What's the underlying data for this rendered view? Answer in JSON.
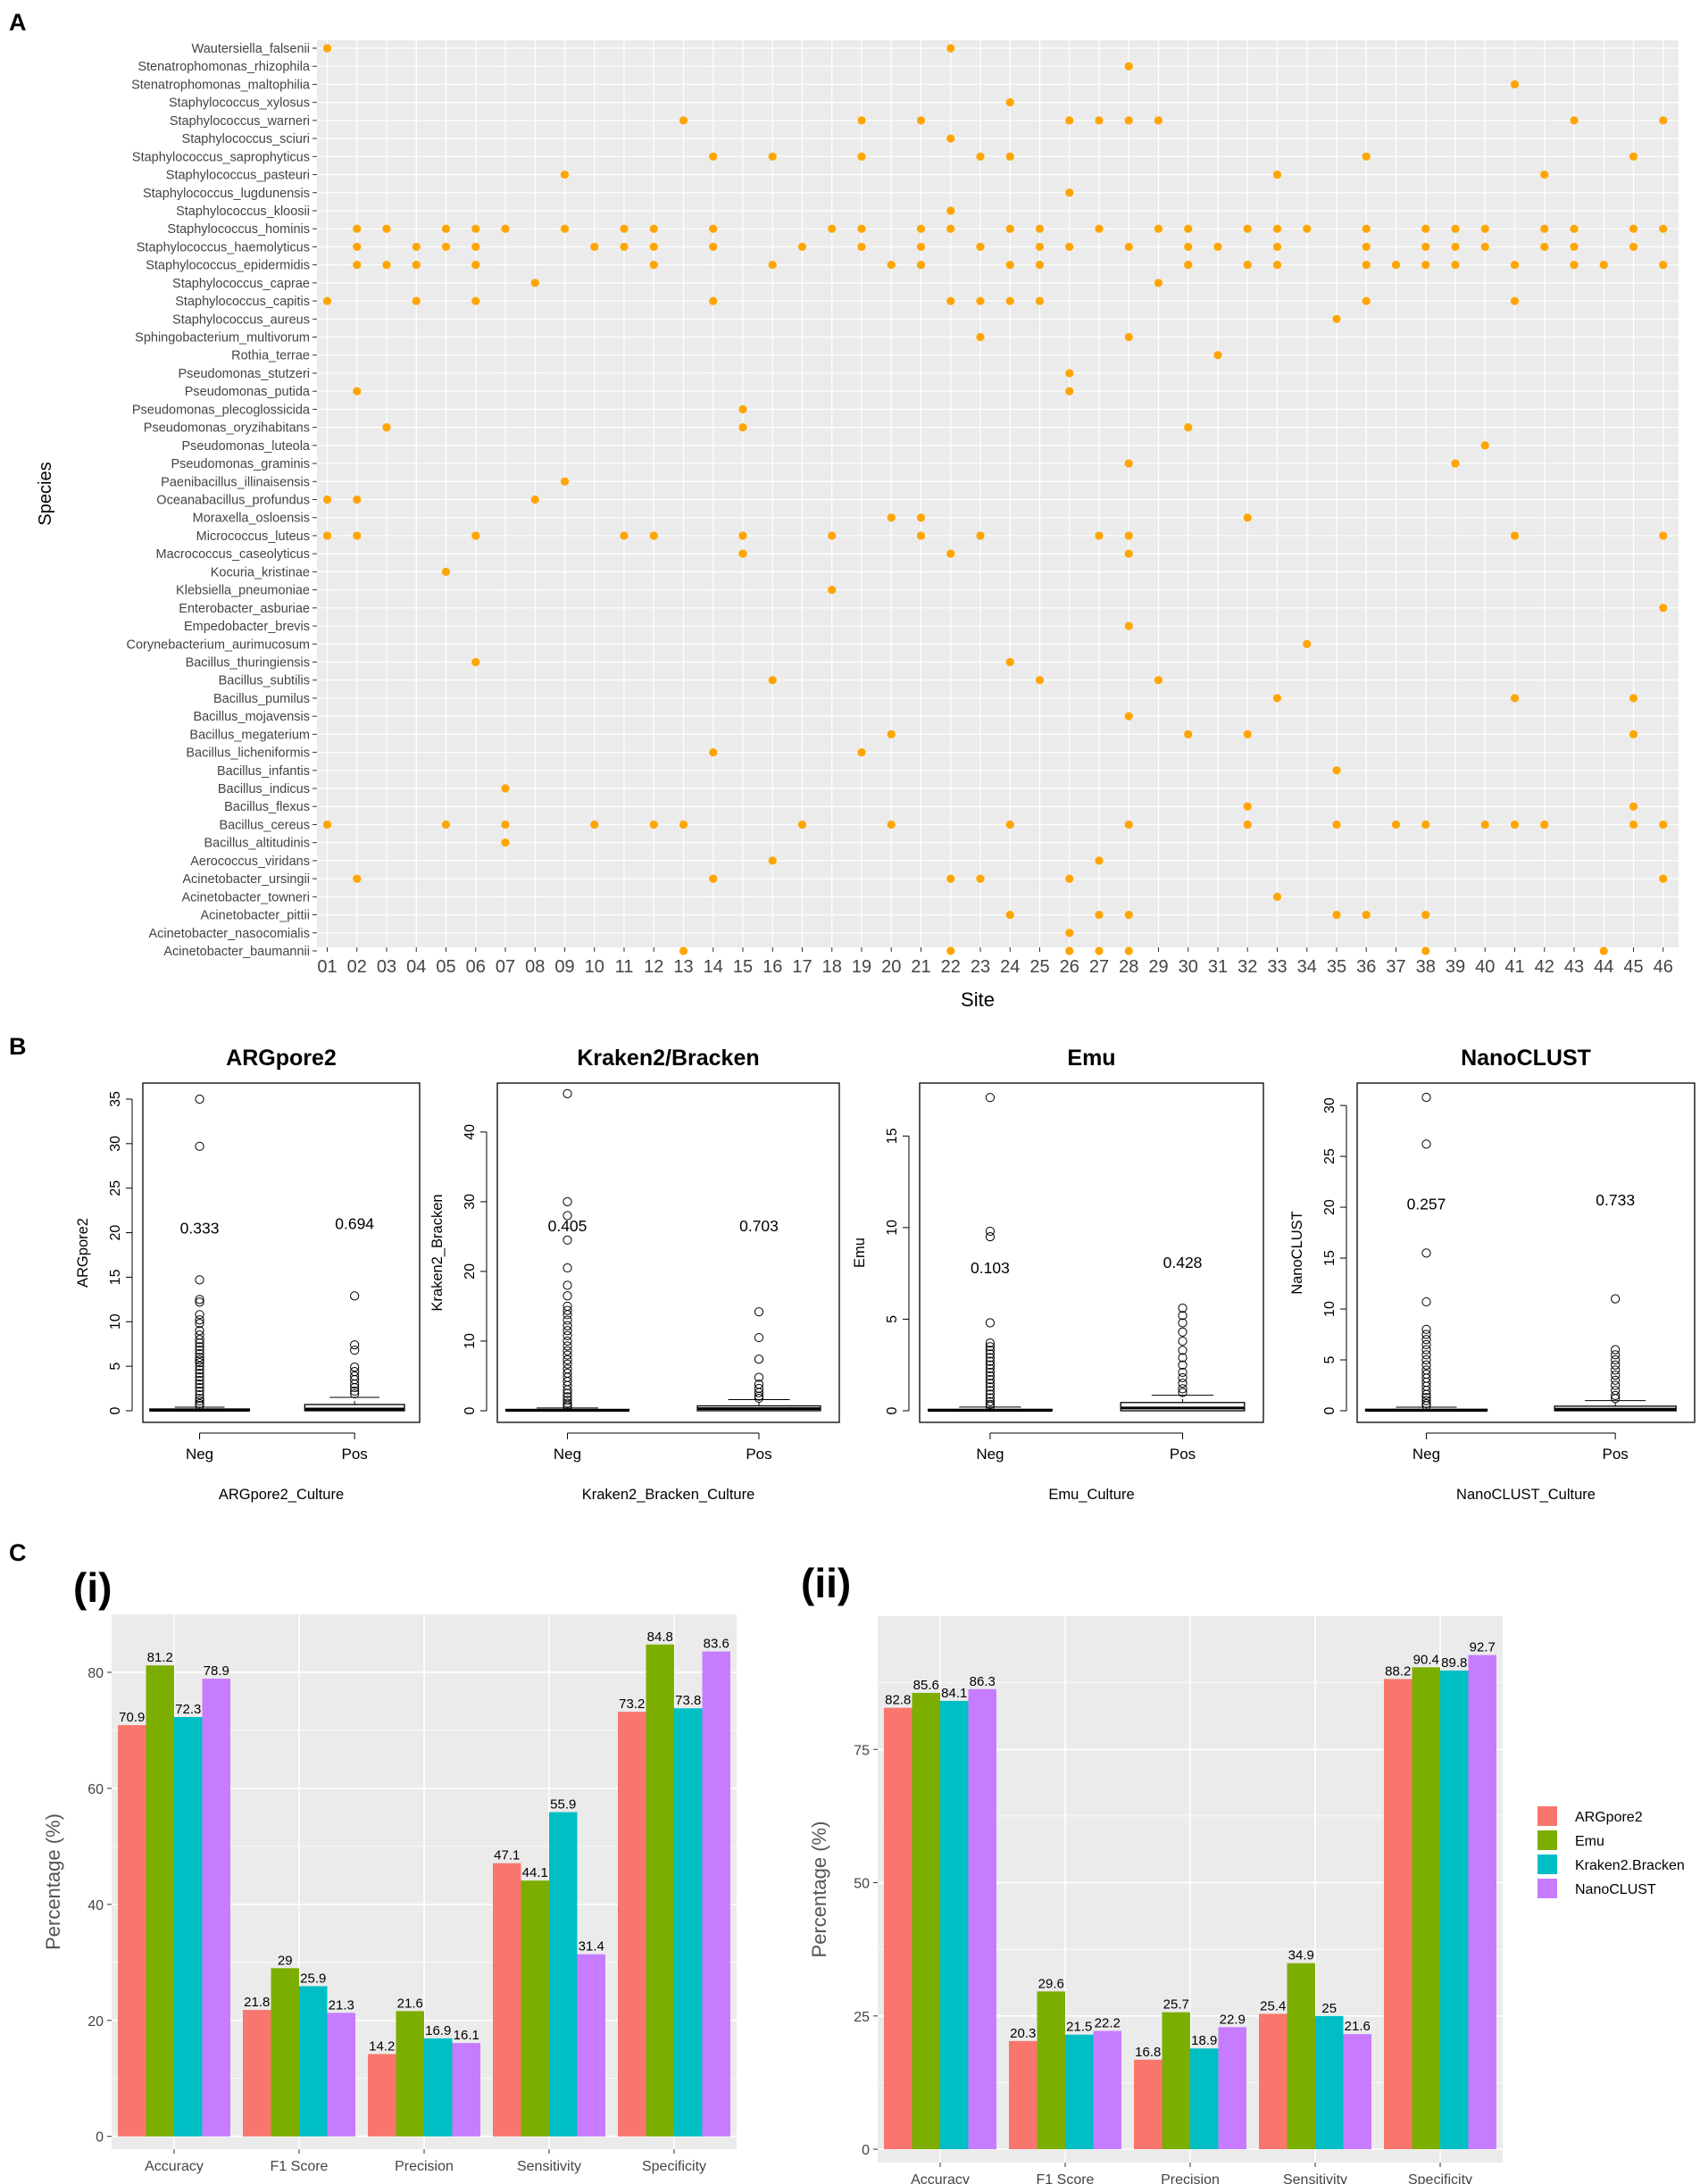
{
  "panel_labels": {
    "a": "A",
    "b": "B",
    "c": "C"
  },
  "colors": {
    "dot": "#ffa500",
    "panel_bg": "#ebebeb",
    "grid": "#ffffff",
    "argpore2": "#f8766d",
    "emu": "#7cae00",
    "kraken": "#00bfc4",
    "nanoclust": "#c77cff"
  },
  "chart_data": [
    {
      "type": "scatter",
      "title": "",
      "xlabel": "Site",
      "ylabel": "Species",
      "sites": [
        "01",
        "02",
        "03",
        "04",
        "05",
        "06",
        "07",
        "08",
        "09",
        "10",
        "11",
        "12",
        "13",
        "14",
        "15",
        "16",
        "17",
        "18",
        "19",
        "20",
        "21",
        "22",
        "23",
        "24",
        "25",
        "26",
        "27",
        "28",
        "29",
        "30",
        "31",
        "32",
        "33",
        "34",
        "35",
        "36",
        "37",
        "38",
        "39",
        "40",
        "41",
        "42",
        "43",
        "44",
        "45",
        "46"
      ],
      "species": [
        "Wautersiella_falsenii",
        "Stenatrophomonas_rhizophila",
        "Stenatrophomonas_maltophilia",
        "Staphylococcus_xylosus",
        "Staphylococcus_warneri",
        "Staphylococcus_sciuri",
        "Staphylococcus_saprophyticus",
        "Staphylococcus_pasteuri",
        "Staphylococcus_lugdunensis",
        "Staphylococcus_kloosii",
        "Staphylococcus_hominis",
        "Staphylococcus_haemolyticus",
        "Staphylococcus_epidermidis",
        "Staphylococcus_caprae",
        "Staphylococcus_capitis",
        "Staphylococcus_aureus",
        "Sphingobacterium_multivorum",
        "Rothia_terrae",
        "Pseudomonas_stutzeri",
        "Pseudomonas_putida",
        "Pseudomonas_plecoglossicida",
        "Pseudomonas_oryzihabitans",
        "Pseudomonas_luteola",
        "Pseudomonas_graminis",
        "Paenibacillus_illinaisensis",
        "Oceanabacillus_profundus",
        "Moraxella_osloensis",
        "Micrococcus_luteus",
        "Macrococcus_caseolyticus",
        "Kocuria_kristinae",
        "Klebsiella_pneumoniae",
        "Enterobacter_asburiae",
        "Empedobacter_brevis",
        "Corynebacterium_aurimucosum",
        "Bacillus_thuringiensis",
        "Bacillus_subtilis",
        "Bacillus_pumilus",
        "Bacillus_mojavensis",
        "Bacillus_megaterium",
        "Bacillus_licheniformis",
        "Bacillus_infantis",
        "Bacillus_indicus",
        "Bacillus_flexus",
        "Bacillus_cereus",
        "Bacillus_altitudinis",
        "Aerococcus_viridans",
        "Acinetobacter_ursingii",
        "Acinetobacter_towneri",
        "Acinetobacter_pittii",
        "Acinetobacter_nasocomialis",
        "Acinetobacter_baumannii"
      ],
      "presence": {
        "Wautersiella_falsenii": [
          "01",
          "22"
        ],
        "Stenatrophomonas_rhizophila": [
          "28"
        ],
        "Stenatrophomonas_maltophilia": [
          "41"
        ],
        "Staphylococcus_xylosus": [
          "24"
        ],
        "Staphylococcus_warneri": [
          "13",
          "19",
          "21",
          "26",
          "27",
          "28",
          "29",
          "43",
          "46"
        ],
        "Staphylococcus_sciuri": [
          "22"
        ],
        "Staphylococcus_saprophyticus": [
          "14",
          "16",
          "19",
          "23",
          "24",
          "36",
          "45"
        ],
        "Staphylococcus_pasteuri": [
          "09",
          "33",
          "42"
        ],
        "Staphylococcus_lugdunensis": [
          "26"
        ],
        "Staphylococcus_kloosii": [
          "22"
        ],
        "Staphylococcus_hominis": [
          "02",
          "03",
          "05",
          "06",
          "07",
          "09",
          "11",
          "12",
          "14",
          "18",
          "19",
          "21",
          "22",
          "24",
          "25",
          "27",
          "29",
          "30",
          "32",
          "33",
          "34",
          "36",
          "38",
          "39",
          "40",
          "42",
          "43",
          "45",
          "46"
        ],
        "Staphylococcus_haemolyticus": [
          "02",
          "04",
          "05",
          "06",
          "10",
          "11",
          "12",
          "14",
          "17",
          "19",
          "21",
          "23",
          "25",
          "26",
          "28",
          "30",
          "31",
          "33",
          "36",
          "38",
          "39",
          "40",
          "42",
          "43",
          "45"
        ],
        "Staphylococcus_epidermidis": [
          "02",
          "03",
          "04",
          "06",
          "12",
          "16",
          "20",
          "21",
          "24",
          "25",
          "30",
          "32",
          "33",
          "36",
          "37",
          "38",
          "39",
          "41",
          "43",
          "44",
          "46"
        ],
        "Staphylococcus_caprae": [
          "08",
          "29"
        ],
        "Staphylococcus_capitis": [
          "01",
          "04",
          "06",
          "14",
          "22",
          "23",
          "24",
          "25",
          "36",
          "41"
        ],
        "Staphylococcus_aureus": [
          "35"
        ],
        "Sphingobacterium_multivorum": [
          "23",
          "28"
        ],
        "Rothia_terrae": [
          "31"
        ],
        "Pseudomonas_stutzeri": [
          "26"
        ],
        "Pseudomonas_putida": [
          "02",
          "26"
        ],
        "Pseudomonas_plecoglossicida": [
          "15"
        ],
        "Pseudomonas_oryzihabitans": [
          "03",
          "15",
          "30"
        ],
        "Pseudomonas_luteola": [
          "40"
        ],
        "Pseudomonas_graminis": [
          "28",
          "39"
        ],
        "Paenibacillus_illinaisensis": [
          "09"
        ],
        "Oceanabacillus_profundus": [
          "01",
          "02",
          "08"
        ],
        "Moraxella_osloensis": [
          "20",
          "21",
          "32"
        ],
        "Micrococcus_luteus": [
          "01",
          "02",
          "06",
          "11",
          "12",
          "15",
          "18",
          "21",
          "23",
          "27",
          "28",
          "41",
          "46"
        ],
        "Macrococcus_caseolyticus": [
          "15",
          "22",
          "28"
        ],
        "Kocuria_kristinae": [
          "05"
        ],
        "Klebsiella_pneumoniae": [
          "18"
        ],
        "Enterobacter_asburiae": [
          "46"
        ],
        "Empedobacter_brevis": [
          "28"
        ],
        "Corynebacterium_aurimucosum": [
          "34"
        ],
        "Bacillus_thuringiensis": [
          "06",
          "24"
        ],
        "Bacillus_subtilis": [
          "16",
          "25",
          "29"
        ],
        "Bacillus_pumilus": [
          "33",
          "41",
          "45"
        ],
        "Bacillus_mojavensis": [
          "28"
        ],
        "Bacillus_megaterium": [
          "20",
          "30",
          "32",
          "45"
        ],
        "Bacillus_licheniformis": [
          "14",
          "19"
        ],
        "Bacillus_infantis": [
          "35"
        ],
        "Bacillus_indicus": [
          "07"
        ],
        "Bacillus_flexus": [
          "32",
          "45"
        ],
        "Bacillus_cereus": [
          "01",
          "05",
          "07",
          "10",
          "12",
          "13",
          "17",
          "20",
          "24",
          "28",
          "32",
          "35",
          "37",
          "38",
          "40",
          "41",
          "42",
          "45",
          "46"
        ],
        "Bacillus_altitudinis": [
          "07"
        ],
        "Aerococcus_viridans": [
          "16",
          "27"
        ],
        "Acinetobacter_ursingii": [
          "02",
          "14",
          "22",
          "23",
          "26",
          "46"
        ],
        "Acinetobacter_towneri": [
          "33"
        ],
        "Acinetobacter_pittii": [
          "24",
          "27",
          "28",
          "35",
          "36",
          "38"
        ],
        "Acinetobacter_nasocomialis": [
          "26"
        ],
        "Acinetobacter_baumannii": [
          "13",
          "22",
          "26",
          "27",
          "28",
          "38",
          "44"
        ]
      }
    },
    {
      "type": "box",
      "title": "ARGpore2",
      "xlabel": "ARGpore2_Culture",
      "ylabel": "ARGpore2",
      "categories": [
        "Neg",
        "Pos"
      ],
      "ylim": [
        0,
        36
      ],
      "yticks": [
        0,
        5,
        10,
        15,
        20,
        25,
        30,
        35
      ],
      "annotations": [
        0.333,
        0.694
      ],
      "annotation_y": [
        20.5,
        21
      ],
      "boxes": [
        {
          "q1": 0,
          "median": 0.05,
          "q3": 0.2,
          "whisker_low": 0,
          "whisker_high": 0.4
        },
        {
          "q1": 0,
          "median": 0.2,
          "q3": 0.7,
          "whisker_low": 0,
          "whisker_high": 1.5
        }
      ],
      "outliers": [
        [
          35,
          29.7,
          14.7,
          12.5,
          12.2,
          10.8,
          10.2,
          9.8,
          9.0,
          8.5,
          8.0,
          7.6,
          7.2,
          6.8,
          6.4,
          6.0,
          5.7,
          5.4,
          5.0,
          4.6,
          4.2,
          3.8,
          3.4,
          3.0,
          2.6,
          2.2,
          1.8,
          1.4,
          1.1,
          0.8,
          0.6
        ],
        [
          12.9,
          7.4,
          6.8,
          4.9,
          4.4,
          3.9,
          3.5,
          3.0,
          2.6,
          2.2,
          1.9
        ]
      ]
    },
    {
      "type": "box",
      "title": "Kraken2/Bracken",
      "xlabel": "Kraken2_Bracken_Culture",
      "ylabel": "Kraken2_Bracken",
      "categories": [
        "Neg",
        "Pos"
      ],
      "ylim": [
        0,
        46
      ],
      "yticks": [
        0,
        10,
        20,
        30,
        40
      ],
      "annotations": [
        0.405,
        0.703
      ],
      "annotation_y": [
        26.5,
        26.5
      ],
      "boxes": [
        {
          "q1": 0,
          "median": 0.05,
          "q3": 0.2,
          "whisker_low": 0,
          "whisker_high": 0.4
        },
        {
          "q1": 0,
          "median": 0.3,
          "q3": 0.7,
          "whisker_low": 0,
          "whisker_high": 1.6
        }
      ],
      "outliers": [
        [
          45.5,
          30,
          28,
          24.5,
          20.5,
          18,
          16.5,
          15,
          14.4,
          13.8,
          13,
          12.2,
          11.5,
          10.8,
          10,
          9.3,
          8.6,
          8,
          7.3,
          6.7,
          6,
          5.4,
          4.8,
          4.2,
          3.6,
          3,
          2.5,
          2,
          1.5,
          1.1,
          0.8,
          0.6
        ],
        [
          14.2,
          10.5,
          7.4,
          4.8,
          3.8,
          3.2,
          2.6,
          2.1,
          1.8
        ]
      ]
    },
    {
      "type": "box",
      "title": "Emu",
      "xlabel": "Emu_Culture",
      "ylabel": "Emu",
      "categories": [
        "Neg",
        "Pos"
      ],
      "ylim": [
        0,
        17.5
      ],
      "yticks": [
        0,
        5,
        10,
        15
      ],
      "annotations": [
        0.103,
        0.428
      ],
      "annotation_y": [
        7.8,
        8.1
      ],
      "boxes": [
        {
          "q1": 0,
          "median": 0.02,
          "q3": 0.08,
          "whisker_low": 0,
          "whisker_high": 0.2
        },
        {
          "q1": 0,
          "median": 0.15,
          "q3": 0.45,
          "whisker_low": 0,
          "whisker_high": 0.85
        }
      ],
      "outliers": [
        [
          17.1,
          9.8,
          9.5,
          4.8,
          3.7,
          3.5,
          3.3,
          3.1,
          2.9,
          2.7,
          2.5,
          2.3,
          2.1,
          1.9,
          1.7,
          1.5,
          1.3,
          1.1,
          0.9,
          0.7,
          0.5,
          0.35,
          0.25
        ],
        [
          5.6,
          5.2,
          4.8,
          4.3,
          3.8,
          3.3,
          2.9,
          2.5,
          2.1,
          1.8,
          1.5,
          1.2,
          1.0
        ]
      ]
    },
    {
      "type": "box",
      "title": "NanoCLUST",
      "xlabel": "NanoCLUST_Culture",
      "ylabel": "NanoCLUST",
      "categories": [
        "Neg",
        "Pos"
      ],
      "ylim": [
        0,
        31.5
      ],
      "yticks": [
        0,
        5,
        10,
        15,
        20,
        25,
        30
      ],
      "annotations": [
        0.257,
        0.733
      ],
      "annotation_y": [
        20.3,
        20.7
      ],
      "boxes": [
        {
          "q1": 0,
          "median": 0.03,
          "q3": 0.15,
          "whisker_low": 0,
          "whisker_high": 0.35
        },
        {
          "q1": 0,
          "median": 0.15,
          "q3": 0.45,
          "whisker_low": 0,
          "whisker_high": 1.0
        }
      ],
      "outliers": [
        [
          30.8,
          26.2,
          15.5,
          10.7,
          8.0,
          7.5,
          7.0,
          6.5,
          6.0,
          5.5,
          5.0,
          4.5,
          4.0,
          3.6,
          3.2,
          2.8,
          2.4,
          2.0,
          1.6,
          1.3,
          1.0,
          0.7,
          0.5
        ],
        [
          11.0,
          6.0,
          5.5,
          5.0,
          4.5,
          4.0,
          3.5,
          3.0,
          2.5,
          2.0,
          1.5,
          1.2
        ]
      ]
    },
    {
      "type": "bar",
      "panel": "(i)",
      "categories": [
        "Accuracy",
        "F1 Score",
        "Precision",
        "Sensitivity",
        "Specificity"
      ],
      "ylabel": "Percentage (%)",
      "ylim": [
        -2.2,
        90
      ],
      "yticks": [
        0,
        20,
        40,
        60,
        80
      ],
      "series": [
        {
          "name": "ARGpore2",
          "values": [
            70.9,
            21.8,
            14.2,
            47.1,
            73.2
          ]
        },
        {
          "name": "Emu",
          "values": [
            81.2,
            29,
            21.6,
            44.1,
            84.8
          ]
        },
        {
          "name": "Kraken2.Bracken",
          "values": [
            72.3,
            25.9,
            16.9,
            55.9,
            73.8
          ]
        },
        {
          "name": "NanoCLUST",
          "values": [
            78.9,
            21.3,
            16.1,
            31.4,
            83.6
          ]
        }
      ]
    },
    {
      "type": "bar",
      "panel": "(ii)",
      "categories": [
        "Accuracy",
        "F1 Score",
        "Precision",
        "Sensitivity",
        "Specificity"
      ],
      "ylabel": "Percentage (%)",
      "ylim": [
        -2.5,
        100
      ],
      "yticks": [
        0,
        25,
        50,
        75
      ],
      "series": [
        {
          "name": "ARGpore2",
          "values": [
            82.8,
            20.3,
            16.8,
            25.4,
            88.2
          ]
        },
        {
          "name": "Emu",
          "values": [
            85.6,
            29.6,
            25.7,
            34.9,
            90.4
          ]
        },
        {
          "name": "Kraken2.Bracken",
          "values": [
            84.1,
            21.5,
            18.9,
            25,
            89.8
          ]
        },
        {
          "name": "NanoCLUST",
          "values": [
            86.3,
            22.2,
            22.9,
            21.6,
            92.7
          ]
        }
      ]
    }
  ],
  "legend": {
    "items": [
      "ARGpore2",
      "Emu",
      "Kraken2.Bracken",
      "NanoCLUST"
    ]
  }
}
